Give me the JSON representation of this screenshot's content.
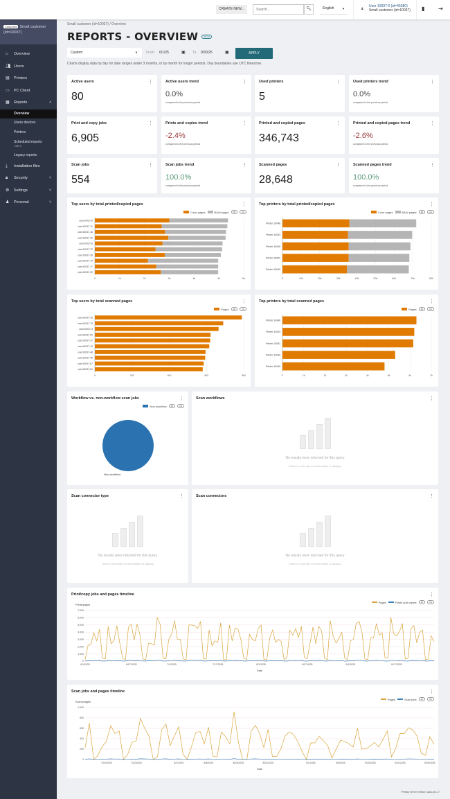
{
  "header": {
    "create_new": "CREATE NEW...",
    "search_placeholder": "Search...",
    "search_icon": "search-icon",
    "language": "English",
    "user_line1": "User 10037-0 (id=45580)",
    "user_line2": "Small customer (id=10037)"
  },
  "sidebar": {
    "customer_tag": "Customer",
    "customer_name": "Small customer (id=10037)",
    "items": [
      {
        "label": "Overview",
        "icon": "home-icon"
      },
      {
        "label": "Users",
        "icon": "users-icon"
      },
      {
        "label": "Printers",
        "icon": "printer-icon"
      },
      {
        "label": "PC Client",
        "icon": "monitor-icon"
      },
      {
        "label": "Reports",
        "icon": "report-icon"
      }
    ],
    "report_subitems": [
      "Overview",
      "Users devices",
      "Printers"
    ],
    "scheduled": {
      "label": "Scheduled reports",
      "badge": "CMI ff"
    },
    "legacy": "Legacy reports",
    "bottom_items": [
      {
        "label": "Installation files",
        "icon": "download-icon"
      },
      {
        "label": "Security",
        "icon": "lock-icon"
      },
      {
        "label": "Settings",
        "icon": "gear-icon"
      },
      {
        "label": "Personal",
        "icon": "person-icon"
      }
    ]
  },
  "page": {
    "breadcrumb": "Small customer (id=10037) / Overview",
    "title": "REPORTS - OVERVIEW",
    "beta": "BETA",
    "range": "Custom",
    "from_label": "From:",
    "from": "6/1/25",
    "to_label": "To:",
    "to": "9/30/25",
    "apply": "APPLY",
    "note": "Charts display data by day for date ranges under 3 months, or by month for longer periods. Day boundaries use UTC timezone."
  },
  "kpis": [
    {
      "title": "Active users",
      "value": "80"
    },
    {
      "title": "Active users trend",
      "value": "0.0%",
      "sub": "compared to the previous period",
      "tone": "neutral"
    },
    {
      "title": "Used printers",
      "value": "5"
    },
    {
      "title": "Used printers trend",
      "value": "0.0%",
      "sub": "compared to the previous period",
      "tone": "neutral"
    },
    {
      "title": "Print and copy jobs",
      "value": "6,905"
    },
    {
      "title": "Prints and copies trend",
      "value": "-2.4%",
      "sub": "compared to the previous period",
      "tone": "neg"
    },
    {
      "title": "Printed and copied pages",
      "value": "346,743"
    },
    {
      "title": "Printed and copied pages trend",
      "value": "-2.6%",
      "sub": "compared to the previous period",
      "tone": "neg"
    },
    {
      "title": "Scan jobs",
      "value": "554"
    },
    {
      "title": "Scan jobs trend",
      "value": "100.0%",
      "sub": "compared to the previous period",
      "tone": "pos"
    },
    {
      "title": "Scanned pages",
      "value": "28,648"
    },
    {
      "title": "Scanned pages trend",
      "value": "100.0%",
      "sub": "compared to the previous period",
      "tone": "pos"
    }
  ],
  "colors": {
    "color_pages": "#e07a00",
    "bw_pages": "#b5b5b5",
    "pie": "#2b72b0",
    "line_pages": "#d9a53a",
    "line_jobs": "#3d7fb5",
    "apply": "#226a78"
  },
  "pills": {
    "all": "All",
    "inv": "Inv"
  },
  "empty": {
    "message": "No results were returned for this query",
    "sub": "There is currently no information to display."
  },
  "footer": "Primary server version: saas-prd-17",
  "chart_data": [
    {
      "id": "top-users-print",
      "type": "bar",
      "title": "Top users by total printed/copied pages",
      "stacked": true,
      "orientation": "horizontal",
      "legend": "top-right",
      "categories": [
        "user10037-6",
        "user10037-71",
        "user10037-16",
        "user10037-30",
        "user10037-8",
        "user10037-72",
        "user10037-39",
        "user10037-14",
        "user10037-17",
        "user10037-32"
      ],
      "series": [
        {
          "name": "Color pages",
          "values": [
            3000,
            2700,
            2830,
            2960,
            2730,
            2450,
            2820,
            2140,
            2470,
            2660
          ]
        },
        {
          "name": "B&W pages",
          "values": [
            2370,
            2640,
            2460,
            2310,
            2420,
            2680,
            2260,
            2830,
            2500,
            2310
          ]
        }
      ],
      "xlim": [
        0,
        6000
      ],
      "ticks": [
        "0",
        "1k",
        "2k",
        "3k",
        "4k",
        "5k",
        "6k"
      ]
    },
    {
      "id": "top-printers-print",
      "type": "bar",
      "title": "Top printers by total printed/copied pages",
      "stacked": true,
      "orientation": "horizontal",
      "legend": "top-right",
      "categories": [
        "Printer 10046",
        "Printer 10043",
        "Printer 10049",
        "Printer 10051",
        "Printer 10040"
      ],
      "series": [
        {
          "name": "Color pages",
          "values": [
            36000,
            35200,
            35600,
            35600,
            34600
          ]
        },
        {
          "name": "B&W pages",
          "values": [
            35900,
            34500,
            33200,
            32600,
            33300
          ]
        }
      ],
      "xlim": [
        0,
        80000
      ],
      "ticks": [
        "0",
        "10k",
        "20k",
        "30k",
        "40k",
        "50k",
        "60k",
        "70k",
        "80k"
      ]
    },
    {
      "id": "top-users-scan",
      "type": "bar",
      "title": "Top users by total scanned pages",
      "orientation": "horizontal",
      "legend": "top-right",
      "categories": [
        "user10037-23",
        "user10037-73",
        "user10037-3",
        "user10037-54",
        "user10037-37",
        "user10037-13",
        "user10037-48",
        "user10037-46",
        "user10037-67",
        "user10037-51"
      ],
      "series": [
        {
          "name": "Pages",
          "values": [
            790,
            690,
            665,
            622,
            620,
            615,
            595,
            593,
            585,
            580
          ]
        }
      ],
      "xlim": [
        0,
        800
      ],
      "ticks": [
        "0",
        "200",
        "400",
        "600",
        "800"
      ]
    },
    {
      "id": "top-printers-scan",
      "type": "bar",
      "title": "Top printers by total scanned pages",
      "orientation": "horizontal",
      "legend": "top-right",
      "categories": [
        "Printer 10046",
        "Printer 10043",
        "Printer 10051",
        "Printer 10049",
        "Printer 10040"
      ],
      "series": [
        {
          "name": "Pages",
          "values": [
            6300,
            6200,
            6150,
            5300,
            4800
          ]
        }
      ],
      "xlim": [
        0,
        7000
      ],
      "ticks": [
        "0",
        "1k",
        "2k",
        "3k",
        "4k",
        "5k",
        "6k",
        "7k"
      ]
    },
    {
      "id": "workflow-pie",
      "type": "pie",
      "title": "Workflow vs. non-workflow scan jobs",
      "legend": "top-right",
      "slices": [
        {
          "name": "Non-workflow",
          "value": 554
        }
      ]
    },
    {
      "id": "scan-workflows",
      "type": "bar",
      "title": "Scan workflows",
      "empty": true
    },
    {
      "id": "scan-connector-type",
      "type": "bar",
      "title": "Scan connector type",
      "empty": true
    },
    {
      "id": "scan-connectors",
      "type": "bar",
      "title": "Scan connectors",
      "empty": true
    },
    {
      "id": "print-timeline",
      "type": "line",
      "title": "Print/copy jobs and pages timeline",
      "ylabel": "Prints/pages",
      "xlabel": "Date",
      "legend": "top-right",
      "x_start": "6/1/2025",
      "x_step": "1 day",
      "ylim": [
        0,
        7000
      ],
      "yticks": [
        "0",
        "1,000",
        "2,000",
        "3,000",
        "4,000",
        "5,000",
        "6,000",
        "7,000"
      ],
      "xticks": [
        "6/1/2025",
        "6/17/2025",
        "7/1/2025",
        "7/17/2025",
        "8/1/2025",
        "8/17/2025",
        "9/1/2025",
        "9/17/2025"
      ],
      "series": [
        {
          "name": "Pages",
          "values": [
            200,
            2200,
            2300,
            3900,
            2800,
            4400,
            400,
            300,
            4800,
            2400,
            2900,
            4900,
            2500,
            400,
            200,
            4700,
            5100,
            2900,
            5100,
            3700,
            300,
            200,
            2500,
            2400,
            2200,
            6000,
            5100,
            400,
            300,
            3000,
            3700,
            5600,
            3000,
            3000,
            300,
            200,
            5000,
            5000,
            4900,
            4500,
            5500,
            300,
            300,
            4300,
            2100,
            2800,
            2600,
            5300,
            200,
            200,
            5000,
            2800,
            4600,
            4400,
            3000,
            400,
            200,
            3700,
            3000,
            2800,
            4500,
            5000,
            200,
            200,
            3200,
            4300,
            2600,
            3000,
            2700,
            200,
            500,
            4300,
            3600,
            4500,
            3300,
            4800,
            500,
            300,
            2500,
            4700,
            2400,
            4800,
            4200,
            400,
            200,
            5600,
            3500,
            2500,
            3100,
            4000,
            400,
            200,
            2800,
            3000,
            5200,
            5500,
            4000,
            300,
            200,
            3200,
            3200,
            5200,
            3600,
            3900,
            400,
            400,
            6100,
            3800,
            3500,
            4100,
            5200,
            300,
            400,
            4500,
            4900,
            2500,
            4000,
            4300,
            200,
            300,
            3500,
            2700
          ]
        },
        {
          "name": "Prints and copies",
          "values": [
            5,
            48,
            50,
            80,
            60,
            88,
            8,
            6,
            95,
            50,
            60,
            98,
            52,
            8,
            5,
            92,
            100,
            58,
            100,
            75,
            6,
            5,
            52,
            50,
            45,
            115,
            100,
            8,
            6,
            60,
            75,
            110,
            60,
            62,
            6,
            5,
            98,
            98,
            96,
            90,
            108,
            6,
            6,
            85,
            44,
            58,
            54,
            104,
            5,
            5,
            98,
            56,
            92,
            88,
            60,
            8,
            5,
            75,
            60,
            58,
            90,
            98,
            5,
            5,
            65,
            86,
            54,
            60,
            55,
            5,
            10,
            86,
            72,
            90,
            66,
            95,
            10,
            6,
            52,
            94,
            50,
            95,
            84,
            8,
            5,
            110,
            70,
            52,
            62,
            80,
            8,
            5,
            58,
            60,
            102,
            108,
            80,
            6,
            5,
            65,
            65,
            102,
            72,
            78,
            8,
            8,
            118,
            76,
            70,
            82,
            102,
            6,
            8,
            90,
            97,
            52,
            80,
            86,
            5,
            6,
            70,
            55
          ]
        }
      ]
    },
    {
      "id": "scan-timeline",
      "type": "line",
      "title": "Scan jobs and pages timeline",
      "ylabel": "Scans/pages",
      "xlabel": "Date",
      "legend": "top-right",
      "x_start": "7/10/2025",
      "x_step": "1 day",
      "ylim": [
        0,
        1000
      ],
      "yticks": [
        "0",
        "200",
        "400",
        "600",
        "800",
        "1,000"
      ],
      "xticks": [
        "7/15/2025",
        "7/22/2025",
        "8/1/2025",
        "8/8/2025",
        "8/15/2025",
        "8/22/2025",
        "9/1/2025",
        "9/8/2025",
        "9/15/2025",
        "9/22/2025",
        "9/29/2025"
      ],
      "series": [
        {
          "name": "Pages",
          "values": [
            230,
            700,
            0,
            80,
            250,
            350,
            650,
            500,
            550,
            0,
            100,
            330,
            360,
            790,
            600,
            450,
            0,
            50,
            580,
            680,
            270,
            460,
            630,
            100,
            0,
            250,
            520,
            540,
            300,
            620,
            70,
            50,
            530,
            440,
            300,
            920,
            340,
            0,
            0,
            540,
            660,
            500,
            230,
            580,
            60,
            60,
            200,
            460,
            530,
            480,
            340,
            150,
            0,
            320,
            320,
            450,
            360,
            270,
            30,
            200,
            370,
            350,
            300,
            240,
            600,
            200,
            210,
            260,
            330,
            240,
            390,
            550,
            50,
            220,
            500,
            500,
            610,
            570,
            450,
            120,
            80,
            440,
            290
          ]
        },
        {
          "name": "Scan jobs",
          "values": [
            5,
            14,
            0,
            2,
            5,
            7,
            13,
            10,
            11,
            0,
            2,
            7,
            7,
            15,
            12,
            9,
            0,
            1,
            11,
            13,
            5,
            9,
            12,
            2,
            0,
            5,
            10,
            11,
            6,
            12,
            2,
            1,
            10,
            9,
            6,
            18,
            7,
            0,
            0,
            11,
            13,
            10,
            5,
            11,
            1,
            1,
            4,
            9,
            10,
            9,
            7,
            3,
            0,
            6,
            6,
            9,
            7,
            5,
            1,
            4,
            7,
            7,
            6,
            5,
            12,
            4,
            4,
            5,
            7,
            5,
            8,
            11,
            1,
            4,
            10,
            10,
            12,
            11,
            9,
            2,
            2,
            9,
            6
          ]
        }
      ]
    }
  ]
}
